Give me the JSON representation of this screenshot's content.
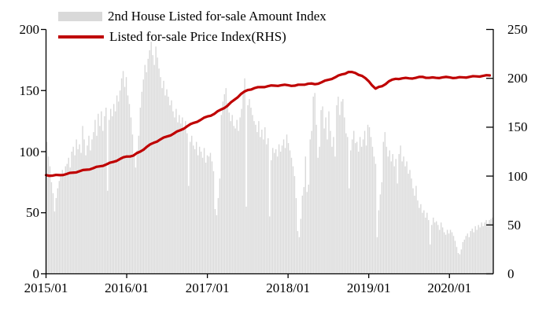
{
  "legend": {
    "amount_label": "2nd House Listed for-sale Amount Index",
    "price_label": "Listed for-sale Price Index(RHS)"
  },
  "colors": {
    "bar": "#d9d9d9",
    "line": "#bf0000",
    "axis": "#000000",
    "background": "#ffffff"
  },
  "chart_data": {
    "type": "bar",
    "subtype": "combo-bar-line-dual-axis",
    "title": "",
    "xlabel": "",
    "ylabel_left": "",
    "ylabel_right": "",
    "grid": false,
    "legend_position": "top-left",
    "x_axis": {
      "tick_labels": [
        "2015/01",
        "2016/01",
        "2017/01",
        "2018/01",
        "2019/01",
        "2020/01"
      ],
      "range_start": "2015/01",
      "range_end": "2020/07"
    },
    "left_axis": {
      "min": 0,
      "max": 200,
      "ticks": [
        0,
        50,
        100,
        150,
        200
      ]
    },
    "right_axis": {
      "min": 0,
      "max": 250,
      "ticks": [
        0,
        50,
        100,
        150,
        200,
        250
      ]
    },
    "series": [
      {
        "name": "2nd House Listed for-sale Amount Index",
        "type": "bar",
        "axis": "left",
        "frequency": "weekly",
        "start": "2015/01",
        "values": [
          108,
          96,
          88,
          75,
          66,
          51,
          62,
          70,
          76,
          81,
          85,
          80,
          88,
          90,
          95,
          87,
          100,
          104,
          97,
          110,
          102,
          106,
          99,
          121,
          110,
          97,
          105,
          113,
          101,
          110,
          116,
          126,
          113,
          131,
          121,
          133,
          117,
          129,
          136,
          68,
          126,
          135,
          129,
          139,
          133,
          146,
          141,
          150,
          160,
          166,
          153,
          161,
          146,
          139,
          128,
          114,
          97,
          87,
          101,
          113,
          136,
          149,
          159,
          171,
          165,
          176,
          183,
          190,
          179,
          171,
          186,
          177,
          168,
          161,
          152,
          158,
          146,
          151,
          145,
          138,
          142,
          133,
          128,
          135,
          124,
          130,
          123,
          128,
          118,
          125,
          115,
          72,
          108,
          113,
          105,
          102,
          108,
          97,
          104,
          100,
          95,
          103,
          91,
          97,
          96,
          99,
          92,
          84,
          53,
          48,
          62,
          78,
          130,
          141,
          147,
          152,
          140,
          132,
          125,
          130,
          121,
          119,
          126,
          117,
          128,
          135,
          148,
          160,
          55,
          138,
          143,
          136,
          130,
          125,
          122,
          116,
          125,
          112,
          118,
          110,
          120,
          106,
          111,
          47,
          93,
          103,
          99,
          102,
          96,
          106,
          100,
          105,
          110,
          103,
          114,
          107,
          101,
          95,
          88,
          80,
          62,
          35,
          30,
          45,
          64,
          71,
          96,
          67,
          73,
          110,
          117,
          145,
          148,
          122,
          95,
          104,
          134,
          137,
          119,
          128,
          110,
          133,
          117,
          104,
          112,
          96,
          138,
          145,
          130,
          141,
          143,
          128,
          115,
          112,
          70,
          101,
          110,
          117,
          107,
          108,
          100,
          112,
          104,
          110,
          117,
          105,
          122,
          120,
          112,
          104,
          96,
          90,
          30,
          52,
          65,
          75,
          108,
          116,
          104,
          96,
          101,
          92,
          98,
          88,
          94,
          74,
          98,
          105,
          92,
          96,
          88,
          92,
          82,
          85,
          78,
          70,
          64,
          72,
          60,
          54,
          57,
          50,
          52,
          46,
          50,
          44,
          24,
          40,
          46,
          42,
          43,
          40,
          36,
          42,
          38,
          34,
          32,
          36,
          33,
          36,
          34,
          31,
          27,
          22,
          17,
          16,
          20,
          26,
          28,
          31,
          33,
          30,
          35,
          37,
          34,
          39,
          36,
          40,
          38,
          42,
          39,
          42,
          44,
          41,
          44,
          45,
          46
        ]
      },
      {
        "name": "Listed for-sale Price Index(RHS)",
        "type": "line",
        "axis": "right",
        "frequency": "monthly",
        "start": "2015/01",
        "values": [
          101,
          100.5,
          101,
          102,
          103.5,
          105,
          106.5,
          108,
          110,
          112,
          114.5,
          117.5,
          120,
          121,
          125,
          130,
          134,
          137.5,
          140.5,
          143.5,
          147,
          151,
          154.5,
          157.5,
          161,
          163.5,
          168,
          172,
          178,
          184,
          188,
          190,
          191,
          192,
          192.5,
          193,
          193,
          192.5,
          193.5,
          194.5,
          194,
          196,
          198.5,
          201,
          204,
          206.5,
          205.5,
          202.5,
          197,
          189.5,
          192,
          197,
          199.5,
          200,
          200,
          200.5,
          201.5,
          200.5,
          200.5,
          201,
          201,
          200.5,
          201,
          201.5,
          202,
          202.5,
          203
        ]
      }
    ]
  }
}
